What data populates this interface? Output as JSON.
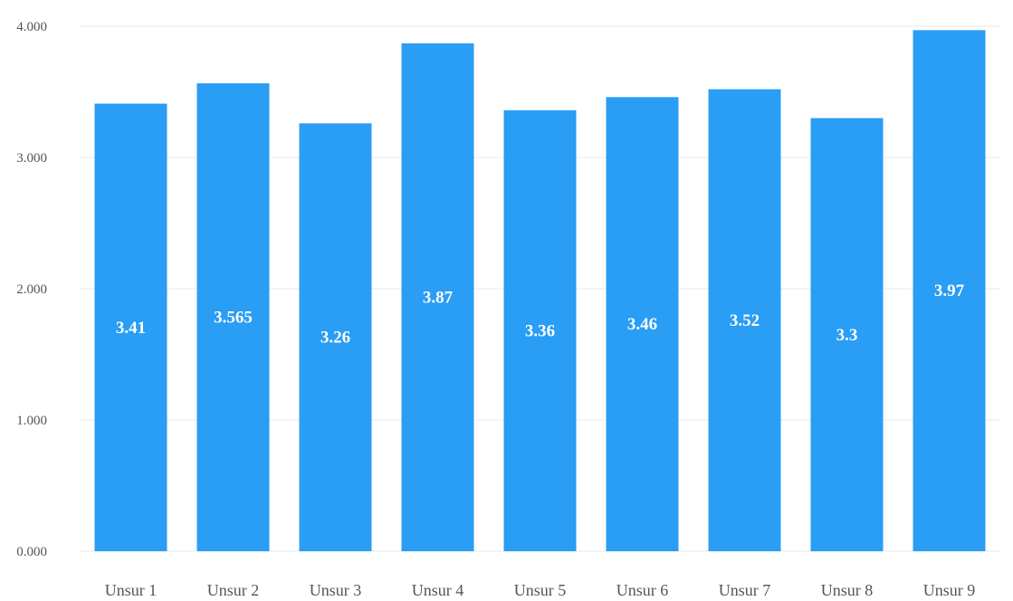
{
  "chart_data": {
    "type": "bar",
    "categories": [
      "Unsur 1",
      "Unsur 2",
      "Unsur 3",
      "Unsur 4",
      "Unsur 5",
      "Unsur 6",
      "Unsur 7",
      "Unsur 8",
      "Unsur 9"
    ],
    "values": [
      3.41,
      3.565,
      3.26,
      3.87,
      3.36,
      3.46,
      3.52,
      3.3,
      3.97
    ],
    "data_labels": [
      "3.41",
      "3.565",
      "3.26",
      "3.87",
      "3.36",
      "3.46",
      "3.52",
      "3.3",
      "3.97"
    ],
    "y_ticks": [
      0,
      1,
      2,
      3,
      4
    ],
    "y_tick_labels": [
      "0.000",
      "1.000",
      "2.000",
      "3.000",
      "4.000"
    ],
    "ylim": [
      0,
      4
    ],
    "grid": true,
    "legend": false,
    "bar_color": "#2a9df4",
    "label_color": "#ffffff"
  }
}
